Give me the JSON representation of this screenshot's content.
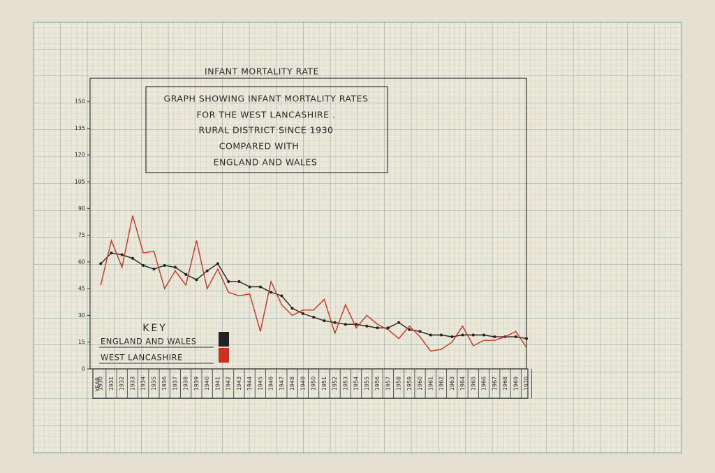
{
  "chart_data": {
    "type": "line",
    "title": "INFANT MORTALITY RATE",
    "annotations": [
      "GRAPH SHOWING INFANT MORTALITY RATES",
      "FOR THE WEST LANCASHIRE .",
      "RURAL DISTRICT SINCE 1930",
      "COMPARED WITH",
      "ENGLAND AND WALES"
    ],
    "legend_title": "KEY",
    "x_label": "YEAR",
    "x": [
      1930,
      1931,
      1932,
      1933,
      1934,
      1935,
      1936,
      1937,
      1938,
      1939,
      1940,
      1941,
      1942,
      1943,
      1944,
      1945,
      1946,
      1947,
      1948,
      1949,
      1950,
      1951,
      1952,
      1953,
      1954,
      1955,
      1956,
      1957,
      1958,
      1959,
      1960,
      1961,
      1962,
      1963,
      1964,
      1965,
      1966,
      1967,
      1968,
      1969,
      1970
    ],
    "xlim": [
      1929,
      1970
    ],
    "ylim": [
      0,
      163
    ],
    "yticks": [
      0,
      15,
      30,
      45,
      60,
      75,
      90,
      105,
      120,
      135,
      150
    ],
    "series": [
      {
        "name": "ENGLAND AND WALES",
        "color": "#222222",
        "markers": true,
        "values": [
          59,
          65,
          64,
          62,
          58,
          56,
          58,
          57,
          53,
          50,
          55,
          59,
          49,
          49,
          46,
          46,
          43,
          41,
          34,
          31,
          29,
          27,
          26,
          25,
          25,
          24,
          23,
          23,
          26,
          22,
          21,
          19,
          19,
          18,
          19,
          19,
          19,
          18,
          18,
          18,
          17
        ]
      },
      {
        "name": "WEST LANCASHIRE",
        "color": "#c8321e",
        "markers": false,
        "values": [
          47,
          72,
          57,
          86,
          65,
          66,
          45,
          55,
          47,
          72,
          45,
          56,
          43,
          41,
          42,
          21,
          49,
          36,
          30,
          33,
          33,
          39,
          20,
          36,
          23,
          30,
          25,
          22,
          17,
          24,
          18,
          10,
          11,
          15,
          24,
          13,
          16,
          16,
          18,
          21,
          12
        ]
      }
    ]
  }
}
